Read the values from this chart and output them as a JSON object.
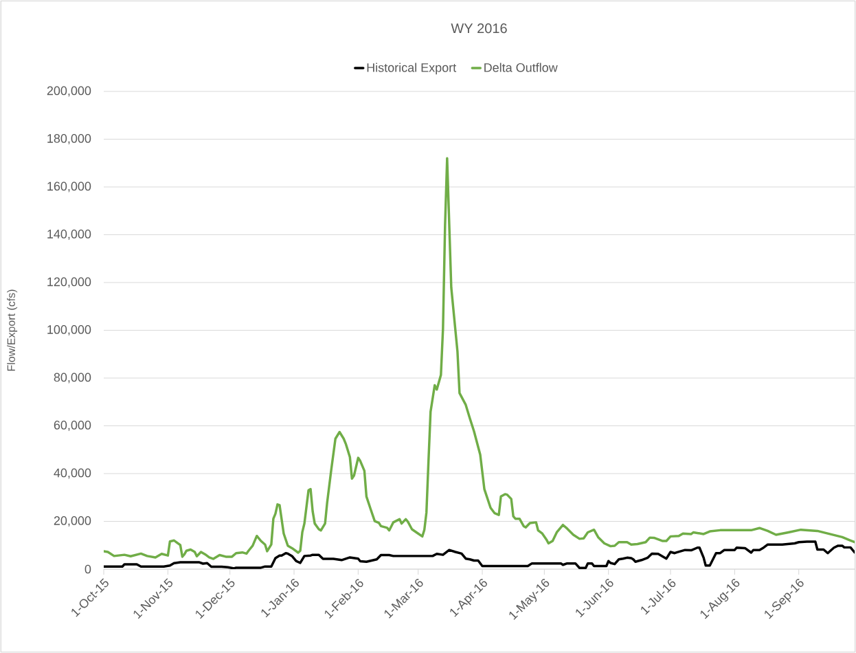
{
  "chart_data": {
    "type": "line",
    "title": "WY 2016",
    "ylabel": "Flow/Export (cfs)",
    "legend": "top",
    "grid": "y",
    "xlim": [
      "2015-10-01",
      "2016-09-28"
    ],
    "ylim": [
      0,
      200000
    ],
    "xticks": [
      {
        "value": "2015-10-01",
        "label": "1-Oct-15"
      },
      {
        "value": "2015-11-01",
        "label": "1-Nov-15"
      },
      {
        "value": "2015-12-01",
        "label": "1-Dec-15"
      },
      {
        "value": "2016-01-01",
        "label": "1-Jan-16"
      },
      {
        "value": "2016-02-01",
        "label": "1-Feb-16"
      },
      {
        "value": "2016-03-01",
        "label": "1-Mar-16"
      },
      {
        "value": "2016-04-01",
        "label": "1-Apr-16"
      },
      {
        "value": "2016-05-01",
        "label": "1-May-16"
      },
      {
        "value": "2016-06-01",
        "label": "1-Jun-16"
      },
      {
        "value": "2016-07-01",
        "label": "1-Jul-16"
      },
      {
        "value": "2016-08-01",
        "label": "1-Aug-16"
      },
      {
        "value": "2016-09-01",
        "label": "1-Sep-16"
      }
    ],
    "yticks": [
      {
        "value": 0,
        "label": "0"
      },
      {
        "value": 20000,
        "label": "20,000"
      },
      {
        "value": 40000,
        "label": "40,000"
      },
      {
        "value": 60000,
        "label": "60,000"
      },
      {
        "value": 80000,
        "label": "80,000"
      },
      {
        "value": 100000,
        "label": "100,000"
      },
      {
        "value": 120000,
        "label": "120,000"
      },
      {
        "value": 140000,
        "label": "140,000"
      },
      {
        "value": 160000,
        "label": "160,000"
      },
      {
        "value": 180000,
        "label": "180,000"
      },
      {
        "value": 200000,
        "label": "200,000"
      }
    ],
    "series": [
      {
        "name": "Historical Export",
        "color": "#000000",
        "x": [
          "2015-10-01",
          "2015-10-10",
          "2015-10-11",
          "2015-10-17",
          "2015-10-19",
          "2015-10-30",
          "2015-11-02",
          "2015-11-04",
          "2015-11-07",
          "2015-11-16",
          "2015-11-18",
          "2015-11-20",
          "2015-11-22",
          "2015-11-27",
          "2015-11-30",
          "2015-12-03",
          "2015-12-04",
          "2015-12-16",
          "2015-12-18",
          "2015-12-21",
          "2015-12-23",
          "2015-12-25",
          "2015-12-26",
          "2015-12-28",
          "2015-12-29",
          "2015-12-31",
          "2016-01-02",
          "2016-01-04",
          "2016-01-06",
          "2016-01-09",
          "2016-01-10",
          "2016-01-13",
          "2016-01-15",
          "2016-01-20",
          "2016-01-24",
          "2016-01-28",
          "2016-02-01",
          "2016-02-02",
          "2016-02-05",
          "2016-02-10",
          "2016-02-12",
          "2016-02-16",
          "2016-02-18",
          "2016-03-08",
          "2016-03-10",
          "2016-03-13",
          "2016-03-16",
          "2016-03-19",
          "2016-03-22",
          "2016-03-24",
          "2016-03-26",
          "2016-03-28",
          "2016-03-30",
          "2016-04-01",
          "2016-04-23",
          "2016-04-25",
          "2016-05-09",
          "2016-05-10",
          "2016-05-12",
          "2016-05-16",
          "2016-05-18",
          "2016-05-21",
          "2016-05-22",
          "2016-05-24",
          "2016-05-25",
          "2016-05-31",
          "2016-06-01",
          "2016-06-02",
          "2016-06-04",
          "2016-06-06",
          "2016-06-08",
          "2016-06-10",
          "2016-06-12",
          "2016-06-13",
          "2016-06-14",
          "2016-06-17",
          "2016-06-20",
          "2016-06-22",
          "2016-06-25",
          "2016-06-27",
          "2016-06-29",
          "2016-07-01",
          "2016-07-03",
          "2016-07-04",
          "2016-07-08",
          "2016-07-11",
          "2016-07-14",
          "2016-07-15",
          "2016-07-17",
          "2016-07-18",
          "2016-07-20",
          "2016-07-23",
          "2016-07-25",
          "2016-07-27",
          "2016-08-01",
          "2016-08-02",
          "2016-08-06",
          "2016-08-09",
          "2016-08-10",
          "2016-08-13",
          "2016-08-15",
          "2016-08-17",
          "2016-08-24",
          "2016-08-30",
          "2016-09-01",
          "2016-09-05",
          "2016-09-09",
          "2016-09-10",
          "2016-09-13",
          "2016-09-15",
          "2016-09-18",
          "2016-09-20",
          "2016-09-22",
          "2016-09-23",
          "2016-09-26",
          "2016-09-28"
        ],
        "values": [
          1100,
          1100,
          2000,
          2000,
          1100,
          1100,
          1500,
          2500,
          2900,
          2900,
          2300,
          2500,
          1000,
          1000,
          800,
          300,
          600,
          600,
          1100,
          1100,
          4600,
          5700,
          5700,
          6700,
          6500,
          5500,
          3400,
          2600,
          5500,
          5700,
          6000,
          6000,
          4300,
          4300,
          3800,
          4900,
          4400,
          3300,
          3100,
          4100,
          5900,
          5900,
          5500,
          5500,
          6400,
          6000,
          8000,
          7200,
          6500,
          4400,
          4100,
          3600,
          3600,
          1300,
          1300,
          2400,
          2400,
          1800,
          2400,
          2400,
          500,
          500,
          2400,
          2400,
          1300,
          1300,
          3400,
          2600,
          2100,
          4100,
          4400,
          4800,
          4600,
          4100,
          3100,
          3800,
          4800,
          6500,
          6400,
          5400,
          4400,
          7200,
          6700,
          7000,
          8000,
          7900,
          9000,
          9000,
          4800,
          1500,
          1500,
          6700,
          6700,
          8000,
          8000,
          9000,
          8800,
          6900,
          8000,
          8000,
          9000,
          10300,
          10300,
          10800,
          11300,
          11500,
          11500,
          8200,
          8200,
          6700,
          9000,
          9800,
          9800,
          9100,
          9100,
          7000
        ]
      },
      {
        "name": "Delta Outflow",
        "color": "#70ad47",
        "x": [
          "2015-10-01",
          "2015-10-03",
          "2015-10-06",
          "2015-10-11",
          "2015-10-14",
          "2015-10-19",
          "2015-10-22",
          "2015-10-26",
          "2015-10-29",
          "2015-11-01",
          "2015-11-02",
          "2015-11-04",
          "2015-11-07",
          "2015-11-08",
          "2015-11-09",
          "2015-11-10",
          "2015-11-12",
          "2015-11-14",
          "2015-11-15",
          "2015-11-17",
          "2015-11-19",
          "2015-11-21",
          "2015-11-23",
          "2015-11-26",
          "2015-11-29",
          "2015-12-02",
          "2015-12-04",
          "2015-12-07",
          "2015-12-09",
          "2015-12-10",
          "2015-12-12",
          "2015-12-14",
          "2015-12-16",
          "2015-12-18",
          "2015-12-19",
          "2015-12-21",
          "2015-12-22",
          "2015-12-23",
          "2015-12-24",
          "2015-12-25",
          "2015-12-27",
          "2015-12-29",
          "2015-12-31",
          "2016-01-03",
          "2016-01-04",
          "2016-01-05",
          "2016-01-06",
          "2016-01-08",
          "2016-01-09",
          "2016-01-10",
          "2016-01-11",
          "2016-01-13",
          "2016-01-14",
          "2016-01-16",
          "2016-01-17",
          "2016-01-19",
          "2016-01-21",
          "2016-01-23",
          "2016-01-25",
          "2016-01-26",
          "2016-01-28",
          "2016-01-29",
          "2016-01-30",
          "2016-02-01",
          "2016-02-02",
          "2016-02-04",
          "2016-02-05",
          "2016-02-07",
          "2016-02-09",
          "2016-02-11",
          "2016-02-12",
          "2016-02-15",
          "2016-02-16",
          "2016-02-18",
          "2016-02-21",
          "2016-02-22",
          "2016-02-24",
          "2016-02-25",
          "2016-02-27",
          "2016-03-01",
          "2016-03-03",
          "2016-03-04",
          "2016-03-05",
          "2016-03-06",
          "2016-03-07",
          "2016-03-09",
          "2016-03-10",
          "2016-03-12",
          "2016-03-13",
          "2016-03-14",
          "2016-03-15",
          "2016-03-17",
          "2016-03-20",
          "2016-03-21",
          "2016-03-24",
          "2016-03-26",
          "2016-03-28",
          "2016-03-31",
          "2016-04-02",
          "2016-04-05",
          "2016-04-07",
          "2016-04-09",
          "2016-04-10",
          "2016-04-12",
          "2016-04-13",
          "2016-04-15",
          "2016-04-16",
          "2016-04-17",
          "2016-04-19",
          "2016-04-21",
          "2016-04-22",
          "2016-04-24",
          "2016-04-27",
          "2016-04-28",
          "2016-04-30",
          "2016-05-02",
          "2016-05-03",
          "2016-05-05",
          "2016-05-07",
          "2016-05-10",
          "2016-05-12",
          "2016-05-15",
          "2016-05-18",
          "2016-05-20",
          "2016-05-22",
          "2016-05-25",
          "2016-05-27",
          "2016-05-30",
          "2016-06-02",
          "2016-06-04",
          "2016-06-06",
          "2016-06-10",
          "2016-06-12",
          "2016-06-15",
          "2016-06-19",
          "2016-06-21",
          "2016-06-23",
          "2016-06-27",
          "2016-06-29",
          "2016-07-01",
          "2016-07-05",
          "2016-07-07",
          "2016-07-11",
          "2016-07-12",
          "2016-07-17",
          "2016-07-20",
          "2016-07-25",
          "2016-07-30",
          "2016-08-05",
          "2016-08-09",
          "2016-08-13",
          "2016-08-17",
          "2016-08-21",
          "2016-08-27",
          "2016-09-02",
          "2016-09-10",
          "2016-09-16",
          "2016-09-22",
          "2016-09-26",
          "2016-09-28"
        ],
        "values": [
          7500,
          7200,
          5500,
          6000,
          5400,
          6500,
          5500,
          4900,
          6400,
          5700,
          11600,
          12000,
          10100,
          5200,
          6200,
          7700,
          8200,
          7200,
          5400,
          7200,
          6200,
          4900,
          4300,
          5900,
          5200,
          5200,
          6700,
          7000,
          6500,
          7700,
          9800,
          13900,
          11800,
          10300,
          7500,
          10300,
          21100,
          23200,
          27100,
          26800,
          14900,
          9800,
          8800,
          6900,
          7700,
          15500,
          19100,
          33000,
          33500,
          24200,
          19100,
          16700,
          16200,
          19100,
          27800,
          41700,
          54600,
          57400,
          54600,
          52500,
          46900,
          37900,
          39200,
          46600,
          45300,
          41200,
          30400,
          25200,
          20100,
          19400,
          18000,
          17300,
          16200,
          19600,
          20900,
          19100,
          20900,
          19900,
          16700,
          14900,
          13700,
          16500,
          23700,
          45300,
          65900,
          77000,
          75200,
          81300,
          100600,
          143900,
          172000,
          117900,
          91100,
          73700,
          68800,
          63100,
          57700,
          47900,
          33500,
          25700,
          23400,
          22700,
          30400,
          31400,
          31200,
          29400,
          22100,
          21100,
          21100,
          18000,
          17500,
          19300,
          19600,
          16200,
          14900,
          12400,
          10800,
          11800,
          15400,
          18500,
          17000,
          14400,
          12700,
          12900,
          15400,
          16500,
          13400,
          10800,
          9600,
          9800,
          11300,
          11300,
          10300,
          10500,
          11300,
          13200,
          13100,
          11800,
          11800,
          13700,
          13900,
          14900,
          14700,
          15400,
          14700,
          15800,
          16300,
          16300,
          16300,
          16300,
          17200,
          16000,
          14400,
          15400,
          16500,
          16000,
          14700,
          13400,
          12000,
          11300
        ]
      }
    ]
  }
}
